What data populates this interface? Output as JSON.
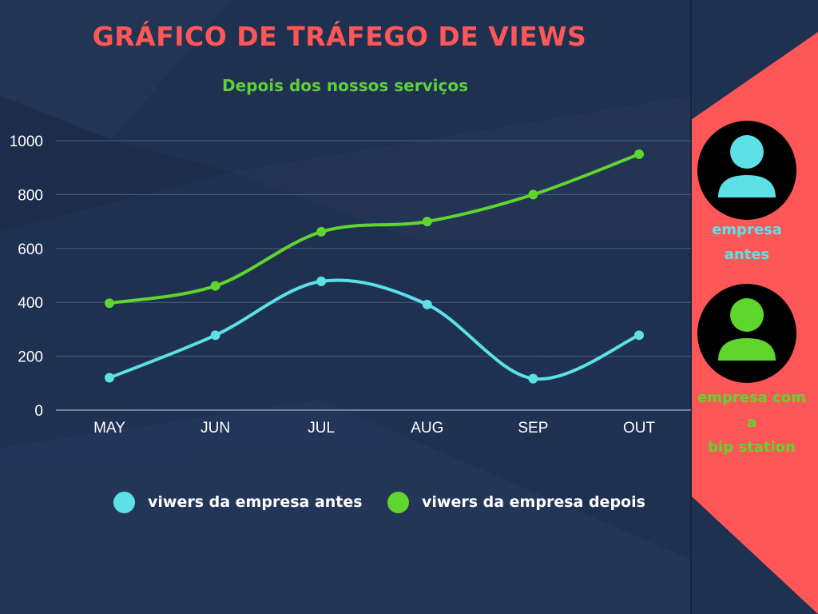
{
  "title": "GRÁFICO DE TRÁFEGO DE VIEWS",
  "subtitle": "Depois dos nossos serviços",
  "colors": {
    "background": "#1f3150",
    "panel": "#ff5757",
    "title": "#ff5757",
    "antes": "#5ce1e6",
    "depois": "#5fd52e",
    "grid": "#4a5f80",
    "axis_text": "#ffffff",
    "avatar_bg": "#000000"
  },
  "chart_data": {
    "type": "line",
    "title": "GRÁFICO DE TRÁFEGO DE VIEWS",
    "subtitle": "Depois dos nossos serviços",
    "categories": [
      "MAY",
      "JUN",
      "JUL",
      "AUG",
      "SEP",
      "OUT"
    ],
    "ylim": [
      0,
      1000
    ],
    "yticks": [
      0,
      200,
      400,
      600,
      800,
      1000
    ],
    "grid": true,
    "legend_position": "bottom",
    "series": [
      {
        "name": "viwers da empresa antes",
        "values": [
          120,
          278,
          478,
          392,
          117,
          278
        ]
      },
      {
        "name": "viwers da empresa depois",
        "values": [
          397,
          461,
          662,
          700,
          800,
          950
        ]
      }
    ]
  },
  "legend": {
    "antes": "viwers da empresa antes",
    "depois": "viwers da empresa depois"
  },
  "panel": {
    "antes_label": "empresa\nantes",
    "depois_label": "empresa com\na\nbip station",
    "antes_icon": "user-avatar-icon",
    "depois_icon": "user-avatar-icon"
  }
}
